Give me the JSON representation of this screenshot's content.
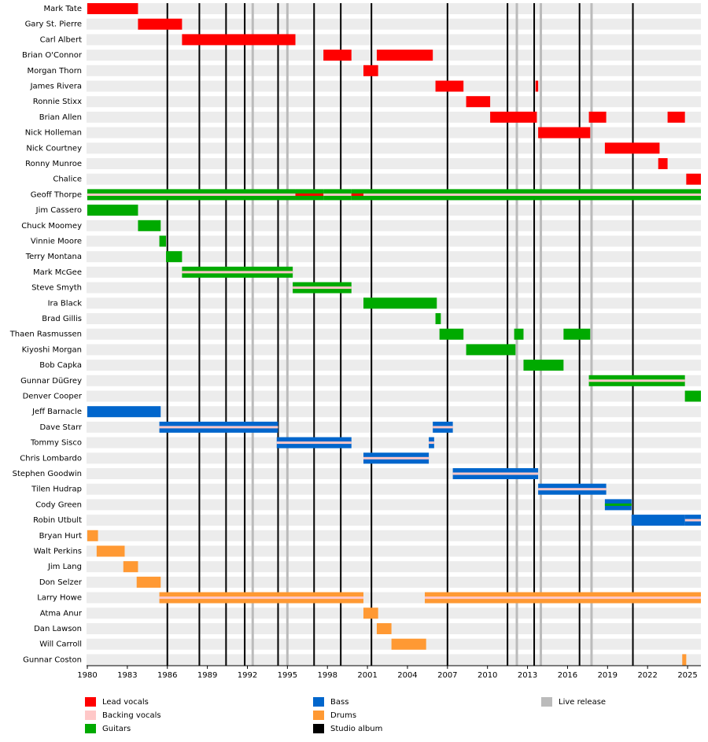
{
  "chart_data": {
    "type": "timeline",
    "xlim": [
      1980,
      2026
    ],
    "xticks": [
      1980,
      1983,
      1986,
      1989,
      1992,
      1995,
      1998,
      2001,
      2004,
      2007,
      2010,
      2013,
      2016,
      2019,
      2022,
      2025
    ],
    "roles": [
      {
        "name": "Lead vocals",
        "color": "#ff0000"
      },
      {
        "name": "Backing vocals",
        "color": "#ffc8c8"
      },
      {
        "name": "Guitars",
        "color": "#00aa00"
      },
      {
        "name": "Bass",
        "color": "#0066cc"
      },
      {
        "name": "Drums",
        "color": "#ff9933"
      },
      {
        "name": "Studio album",
        "color": "#000000"
      },
      {
        "name": "Live release",
        "color": "#bbbbbb"
      }
    ],
    "studio_albums": [
      1986.0,
      1988.4,
      1990.4,
      1991.8,
      1994.3,
      1997.0,
      1999.0,
      2001.3,
      2007.0,
      2011.5,
      2013.5,
      2016.9,
      2020.9
    ],
    "live_releases": [
      1992.4,
      1995.0,
      2012.2,
      2014.0,
      2017.8
    ],
    "members": [
      {
        "name": "Mark Tate",
        "spans": [
          {
            "role": 0,
            "start": 1980,
            "end": 1983.8
          }
        ]
      },
      {
        "name": "Gary St. Pierre",
        "spans": [
          {
            "role": 0,
            "start": 1983.8,
            "end": 1987.1
          }
        ]
      },
      {
        "name": "Carl Albert",
        "spans": [
          {
            "role": 0,
            "start": 1987.1,
            "end": 1995.6
          }
        ]
      },
      {
        "name": "Brian O'Connor",
        "spans": [
          {
            "role": 0,
            "start": 1997.7,
            "end": 1999.8
          },
          {
            "role": 0,
            "start": 2001.7,
            "end": 2005.9
          }
        ]
      },
      {
        "name": "Morgan Thorn",
        "spans": [
          {
            "role": 0,
            "start": 2000.7,
            "end": 2001.8
          }
        ]
      },
      {
        "name": "James Rivera",
        "spans": [
          {
            "role": 0,
            "start": 2006.1,
            "end": 2008.2
          },
          {
            "role": 0,
            "start": 2013.6,
            "end": 2013.8
          }
        ]
      },
      {
        "name": "Ronnie Stixx",
        "spans": [
          {
            "role": 0,
            "start": 2008.4,
            "end": 2010.2
          }
        ]
      },
      {
        "name": "Brian Allen",
        "spans": [
          {
            "role": 0,
            "start": 2010.2,
            "end": 2013.7
          },
          {
            "role": 0,
            "start": 2017.6,
            "end": 2018.9
          },
          {
            "role": 0,
            "start": 2023.5,
            "end": 2024.8
          }
        ]
      },
      {
        "name": "Nick Holleman",
        "spans": [
          {
            "role": 0,
            "start": 2013.8,
            "end": 2017.7
          }
        ]
      },
      {
        "name": "Nick Courtney",
        "spans": [
          {
            "role": 0,
            "start": 2018.8,
            "end": 2022.9
          }
        ]
      },
      {
        "name": "Ronny Munroe",
        "spans": [
          {
            "role": 0,
            "start": 2022.8,
            "end": 2023.5
          }
        ]
      },
      {
        "name": "Chalice",
        "spans": [
          {
            "role": 0,
            "start": 2024.9,
            "end": 2026
          }
        ]
      },
      {
        "name": "Geoff Thorpe",
        "spans": [
          {
            "role": 2,
            "inner": 1,
            "start": 1980,
            "end": 1995.6
          },
          {
            "role": 2,
            "inner": 0,
            "start": 1995.6,
            "end": 1997.7
          },
          {
            "role": 2,
            "inner": 1,
            "start": 1997.7,
            "end": 1999.8
          },
          {
            "role": 2,
            "inner": 0,
            "start": 1999.8,
            "end": 2000.7
          },
          {
            "role": 2,
            "inner": 1,
            "start": 2000.7,
            "end": 2026
          }
        ]
      },
      {
        "name": "Jim Cassero",
        "spans": [
          {
            "role": 2,
            "start": 1980,
            "end": 1983.8
          }
        ]
      },
      {
        "name": "Chuck Moomey",
        "spans": [
          {
            "role": 2,
            "start": 1983.8,
            "end": 1985.5
          }
        ]
      },
      {
        "name": "Vinnie Moore",
        "spans": [
          {
            "role": 2,
            "start": 1985.4,
            "end": 1985.9
          }
        ]
      },
      {
        "name": "Terry Montana",
        "spans": [
          {
            "role": 2,
            "start": 1985.9,
            "end": 1987.1
          }
        ]
      },
      {
        "name": "Mark McGee",
        "spans": [
          {
            "role": 2,
            "inner": 1,
            "start": 1987.1,
            "end": 1995.4
          }
        ]
      },
      {
        "name": "Steve Smyth",
        "spans": [
          {
            "role": 2,
            "inner": 1,
            "start": 1995.4,
            "end": 1999.8
          }
        ]
      },
      {
        "name": "Ira Black",
        "spans": [
          {
            "role": 2,
            "start": 2000.7,
            "end": 2006.2
          }
        ]
      },
      {
        "name": "Brad Gillis",
        "spans": [
          {
            "role": 2,
            "start": 2006.1,
            "end": 2006.5
          }
        ]
      },
      {
        "name": "Thaen Rasmussen",
        "spans": [
          {
            "role": 2,
            "start": 2006.4,
            "end": 2008.2
          },
          {
            "role": 2,
            "start": 2012.0,
            "end": 2012.7
          },
          {
            "role": 2,
            "start": 2015.7,
            "end": 2017.7
          }
        ]
      },
      {
        "name": "Kiyoshi Morgan",
        "spans": [
          {
            "role": 2,
            "start": 2008.4,
            "end": 2012.1
          }
        ]
      },
      {
        "name": "Bob Capka",
        "spans": [
          {
            "role": 2,
            "start": 2012.7,
            "end": 2015.7
          }
        ]
      },
      {
        "name": "Gunnar DüGrey",
        "spans": [
          {
            "role": 2,
            "inner": 1,
            "start": 2017.6,
            "end": 2024.8
          }
        ]
      },
      {
        "name": "Denver Cooper",
        "spans": [
          {
            "role": 2,
            "start": 2024.8,
            "end": 2026
          }
        ]
      },
      {
        "name": "Jeff Barnacle",
        "spans": [
          {
            "role": 3,
            "start": 1980,
            "end": 1985.5
          }
        ]
      },
      {
        "name": "Dave Starr",
        "spans": [
          {
            "role": 3,
            "inner": 1,
            "start": 1985.4,
            "end": 1994.3
          },
          {
            "role": 3,
            "inner": 1,
            "start": 2005.9,
            "end": 2007.4
          }
        ]
      },
      {
        "name": "Tommy Sisco",
        "spans": [
          {
            "role": 3,
            "inner": 1,
            "start": 1994.2,
            "end": 1999.8
          },
          {
            "role": 3,
            "inner": 1,
            "start": 2005.6,
            "end": 2006.0
          }
        ]
      },
      {
        "name": "Chris Lombardo",
        "spans": [
          {
            "role": 3,
            "inner": 1,
            "start": 2000.7,
            "end": 2005.6
          }
        ]
      },
      {
        "name": "Stephen Goodwin",
        "spans": [
          {
            "role": 3,
            "inner": 1,
            "start": 2007.4,
            "end": 2013.8
          }
        ]
      },
      {
        "name": "Tilen Hudrap",
        "spans": [
          {
            "role": 3,
            "inner": 1,
            "start": 2013.8,
            "end": 2018.9
          }
        ]
      },
      {
        "name": "Cody Green",
        "spans": [
          {
            "role": 3,
            "inner": 2,
            "start": 2018.8,
            "end": 2020.8
          }
        ]
      },
      {
        "name": "Robin Utbult",
        "spans": [
          {
            "role": 3,
            "start": 2020.8,
            "end": 2024.8
          },
          {
            "role": 3,
            "inner": 1,
            "start": 2024.8,
            "end": 2026
          }
        ]
      },
      {
        "name": "Bryan Hurt",
        "spans": [
          {
            "role": 4,
            "start": 1980,
            "end": 1980.8
          }
        ]
      },
      {
        "name": "Walt Perkins",
        "spans": [
          {
            "role": 4,
            "start": 1980.7,
            "end": 1982.8
          }
        ]
      },
      {
        "name": "Jim Lang",
        "spans": [
          {
            "role": 4,
            "start": 1982.7,
            "end": 1983.8
          }
        ]
      },
      {
        "name": "Don Selzer",
        "spans": [
          {
            "role": 4,
            "start": 1983.7,
            "end": 1985.5
          }
        ]
      },
      {
        "name": "Larry Howe",
        "spans": [
          {
            "role": 4,
            "inner": 1,
            "start": 1985.4,
            "end": 2000.7
          },
          {
            "role": 4,
            "inner": 1,
            "start": 2005.3,
            "end": 2026
          }
        ]
      },
      {
        "name": "Atma Anur",
        "spans": [
          {
            "role": 4,
            "start": 2000.7,
            "end": 2001.8
          }
        ]
      },
      {
        "name": "Dan Lawson",
        "spans": [
          {
            "role": 4,
            "start": 2001.7,
            "end": 2002.8
          }
        ]
      },
      {
        "name": "Will Carroll",
        "spans": [
          {
            "role": 4,
            "start": 2002.8,
            "end": 2005.4
          }
        ]
      },
      {
        "name": "Gunnar Coston",
        "spans": [
          {
            "role": 4,
            "start": 2024.6,
            "end": 2024.9
          }
        ]
      }
    ]
  }
}
